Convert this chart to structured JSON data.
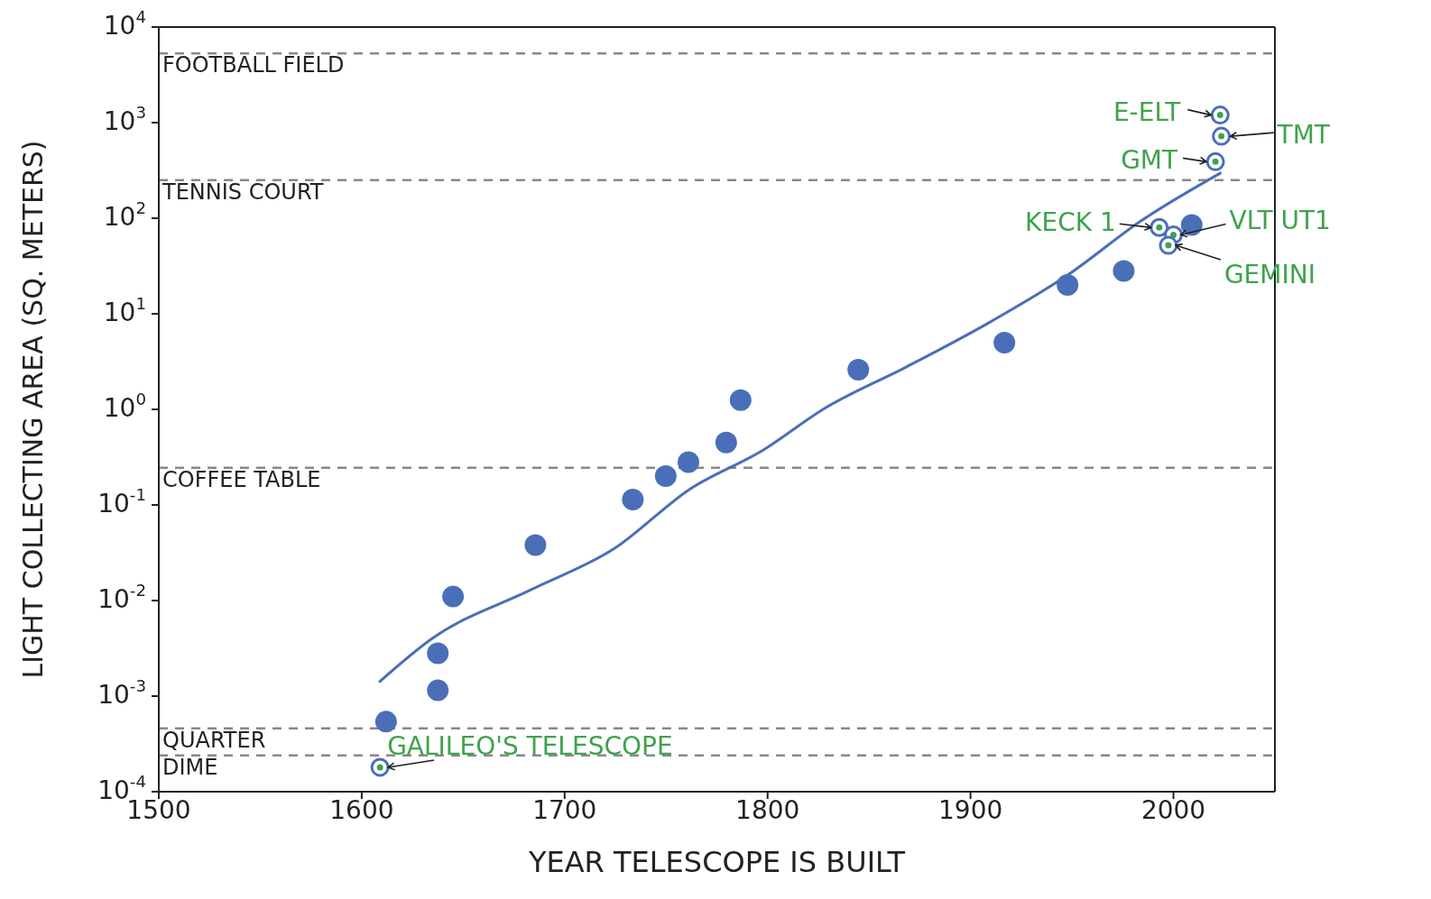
{
  "chart_data": {
    "type": "scatter",
    "xlabel": "YEAR TELESCOPE IS BUILT",
    "ylabel": "LIGHT COLLECTING AREA (SQ. METERS)",
    "log": "y",
    "xlim": [
      1500,
      2050
    ],
    "xticks": [
      1500,
      1600,
      1700,
      1800,
      1900,
      2000
    ],
    "ylim": [
      0.0001,
      10000
    ],
    "yticks": [
      {
        "value": 0.0001,
        "label": "10$^{-4}$"
      },
      {
        "value": 0.001,
        "label": "10$^{-3}$"
      },
      {
        "value": 0.01,
        "label": "10$^{-2}$"
      },
      {
        "value": 0.1,
        "label": "10$^{-1}$"
      },
      {
        "value": 1,
        "label": "10$^{0}$"
      },
      {
        "value": 10,
        "label": "10$^{1}$"
      },
      {
        "value": 100,
        "label": "10$^{2}$"
      },
      {
        "value": 1000,
        "label": "10$^{3}$"
      },
      {
        "value": 10000,
        "label": "10$^{4}$"
      }
    ],
    "series": [
      {
        "marker": "circle",
        "color": "#4a6fb8",
        "x": [
          1612,
          1637.5,
          1637.5,
          1645,
          1685.6,
          1733.6,
          1749.8,
          1761,
          1779.6,
          1786.7,
          1844.7,
          1916.7,
          1947.8,
          1975.5,
          2009
        ],
        "values": [
          0.00054,
          0.0028,
          0.00115,
          0.011,
          0.038,
          0.114,
          0.2,
          0.28,
          0.45,
          1.25,
          2.6,
          5,
          20,
          28,
          85
        ]
      },
      {
        "marker": "circle",
        "color": "#4a6fb8",
        "x": [
          1609,
          1993,
          2000,
          1997.5,
          2020.7,
          2023.6,
          2023
        ],
        "values": [
          0.00018,
          80,
          67,
          52,
          390,
          720,
          1200
        ]
      },
      {
        "type": "line",
        "marker": "none",
        "line_style": "solid",
        "color": "#4a6fb8",
        "x": [
          1608.5,
          1634.6,
          1683.5,
          1724.5,
          1761.4,
          1798.3,
          1827.3,
          1868.7,
          1910.1,
          1947.4,
          1983.8,
          2023.6
        ],
        "values": [
          0.0014,
          0.004,
          0.013,
          0.035,
          0.145,
          0.38,
          1.0,
          2.8,
          8.3,
          25,
          93,
          300
        ]
      }
    ],
    "ref_lines": [
      {
        "axis": "y",
        "value": 5300,
        "label": "FOOTBALL FIELD",
        "color": "#888888",
        "line_style": "dashed"
      },
      {
        "axis": "y",
        "value": 250,
        "label": "TENNIS COURT",
        "color": "#888888",
        "line_style": "dashed"
      },
      {
        "axis": "y",
        "value": 0.245,
        "label": "COFFEE TABLE",
        "color": "#888888",
        "line_style": "dashed"
      },
      {
        "axis": "y",
        "value": 0.00046,
        "label": "QUARTER",
        "color": "#888888",
        "line_style": "dashed"
      },
      {
        "axis": "y",
        "value": 0.00024,
        "label": "DIME",
        "color": "#888888",
        "line_style": "dashed"
      }
    ],
    "annotations": [
      {
        "text": "GALILEO'S TELESCOPE",
        "x": 1609,
        "y": 0.00018
      },
      {
        "text": "KECK 1",
        "x": 1993,
        "y": 80
      },
      {
        "text": "VLT UT1",
        "x": 2000,
        "y": 67
      },
      {
        "text": "GEMINI",
        "x": 1997.5,
        "y": 52
      },
      {
        "text": "GMT",
        "x": 2020.7,
        "y": 390
      },
      {
        "text": "TMT",
        "x": 2023.6,
        "y": 720
      },
      {
        "text": "E-ELT",
        "x": 2023,
        "y": 1200
      }
    ]
  }
}
